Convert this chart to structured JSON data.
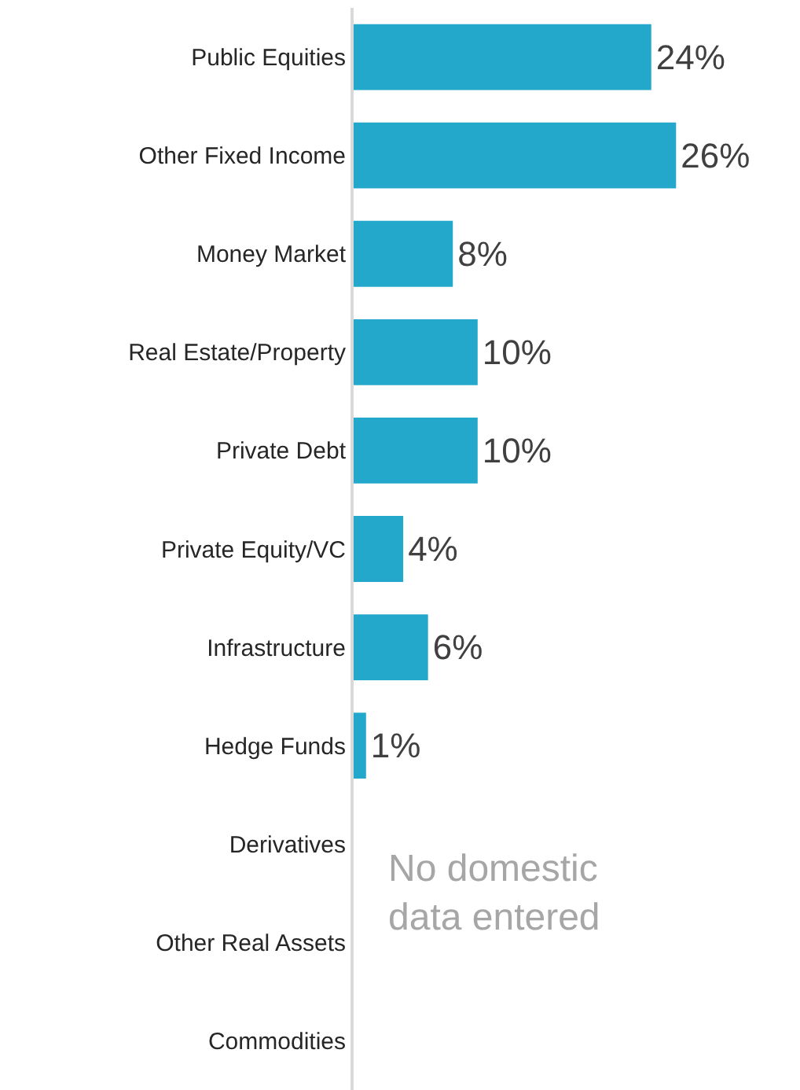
{
  "chart_data": {
    "type": "bar",
    "orientation": "horizontal",
    "categories": [
      "Public Equities",
      "Other Fixed Income",
      "Money Market",
      "Real Estate/Property",
      "Private Debt",
      "Private Equity/VC",
      "Infrastructure",
      "Hedge Funds",
      "Derivatives",
      "Other Real Assets",
      "Commodities"
    ],
    "values": [
      24,
      26,
      8,
      10,
      10,
      4,
      6,
      1,
      null,
      null,
      null
    ],
    "value_labels": [
      "24%",
      "26%",
      "8%",
      "10%",
      "10%",
      "4%",
      "6%",
      "1%",
      null,
      null,
      null
    ],
    "color": "#23a8cc",
    "annotations": [
      "No domestic\ndata entered"
    ]
  }
}
